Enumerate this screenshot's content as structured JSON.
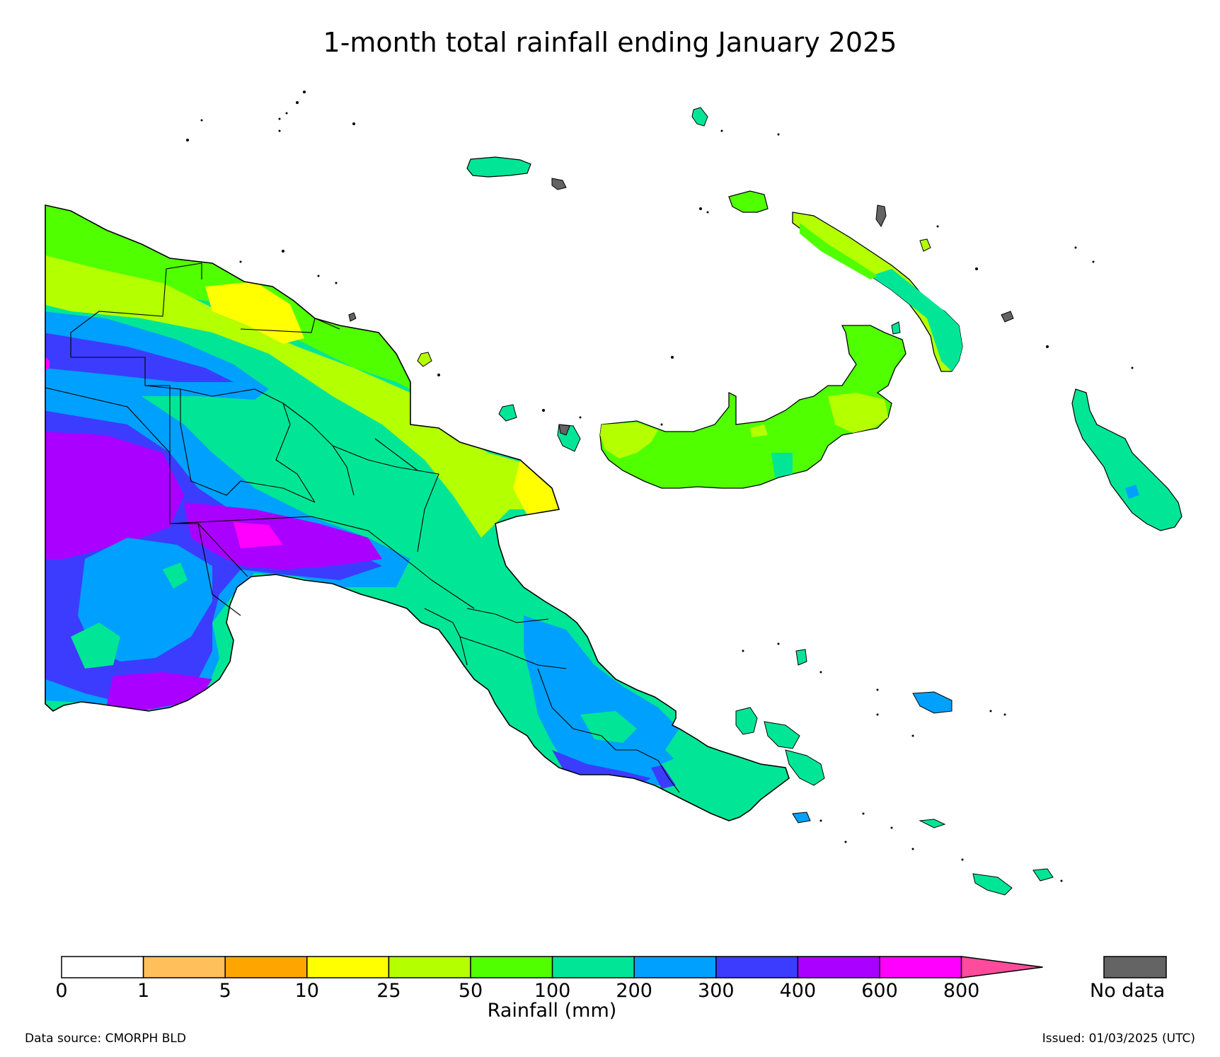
{
  "title": "1-month total rainfall ending January 2025",
  "colorbar": {
    "title": "Rainfall (mm)",
    "ticks": [
      "0",
      "1",
      "5",
      "10",
      "25",
      "50",
      "100",
      "200",
      "300",
      "400",
      "600",
      "800"
    ],
    "colors": [
      "#ffffff",
      "#ffbf5a",
      "#ffa500",
      "#ffff00",
      "#b4ff00",
      "#50ff00",
      "#00e696",
      "#00a0ff",
      "#3c3cff",
      "#aa00ff",
      "#ff00ff"
    ],
    "overflow_color": "#ff4b9b",
    "nodata_label": "No data",
    "nodata_color": "#646464"
  },
  "footer": {
    "source": "Data source: CMORPH BLD",
    "issued": "Issued: 01/03/2025 (UTC)"
  }
}
